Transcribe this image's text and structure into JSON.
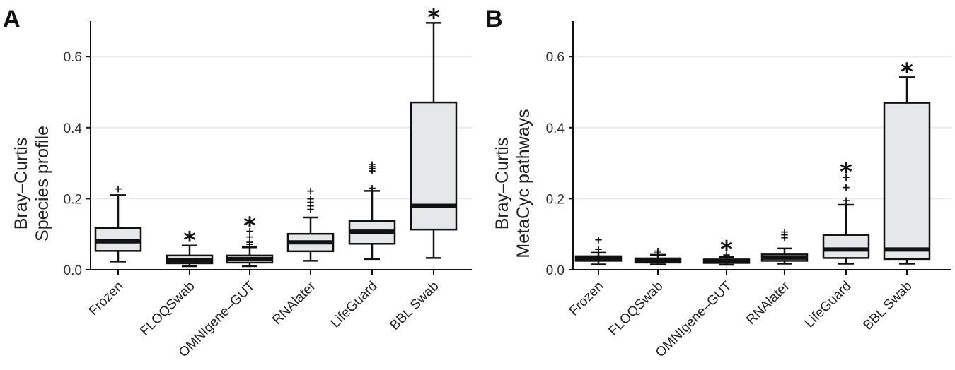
{
  "chart_data": [
    {
      "panel": "A",
      "type": "box",
      "ylabel_line1": "Bray–Curtis",
      "ylabel_line2": "Species profile",
      "ylim": [
        0,
        0.7
      ],
      "yticks": [
        0.0,
        0.2,
        0.4,
        0.6
      ],
      "ytick_labels": [
        "0.0",
        "0.2",
        "0.4",
        "0.6"
      ],
      "grid": true,
      "categories": [
        "Frozen",
        "FLOQSwab",
        "OMNIgene–GUT",
        "RNAlater",
        "LifeGuard",
        "BBL Swab"
      ],
      "boxes": [
        {
          "min": 0.023,
          "q1": 0.053,
          "median": 0.08,
          "q3": 0.117,
          "max": 0.21,
          "outliers": [
            0.228
          ],
          "significant": false
        },
        {
          "min": 0.01,
          "q1": 0.018,
          "median": 0.026,
          "q3": 0.04,
          "max": 0.068,
          "outliers": [],
          "significant": true
        },
        {
          "min": 0.01,
          "q1": 0.02,
          "median": 0.03,
          "q3": 0.04,
          "max": 0.063,
          "outliers": [
            0.072,
            0.078,
            0.092,
            0.108
          ],
          "significant": true
        },
        {
          "min": 0.025,
          "q1": 0.052,
          "median": 0.077,
          "q3": 0.101,
          "max": 0.147,
          "outliers": [
            0.17,
            0.18,
            0.19,
            0.2,
            0.222
          ],
          "significant": false
        },
        {
          "min": 0.03,
          "q1": 0.073,
          "median": 0.107,
          "q3": 0.137,
          "max": 0.222,
          "outliers": [
            0.23,
            0.278,
            0.285,
            0.29,
            0.296
          ],
          "significant": false
        },
        {
          "min": 0.033,
          "q1": 0.113,
          "median": 0.18,
          "q3": 0.471,
          "max": 0.695,
          "outliers": [],
          "significant": true
        }
      ]
    },
    {
      "panel": "B",
      "type": "box",
      "ylabel_line1": "Bray–Curtis",
      "ylabel_line2": "MetaCyc pathways",
      "ylim": [
        0,
        0.7
      ],
      "yticks": [
        0.0,
        0.2,
        0.4,
        0.6
      ],
      "ytick_labels": [
        "0.0",
        "0.2",
        "0.4",
        "0.6"
      ],
      "grid": true,
      "categories": [
        "Frozen",
        "FLOQSwab",
        "OMNIgene–GUT",
        "RNAlater",
        "LifeGuard",
        "BBL Swab"
      ],
      "boxes": [
        {
          "min": 0.015,
          "q1": 0.025,
          "median": 0.031,
          "q3": 0.038,
          "max": 0.048,
          "outliers": [
            0.058,
            0.084
          ],
          "significant": false
        },
        {
          "min": 0.015,
          "q1": 0.02,
          "median": 0.026,
          "q3": 0.032,
          "max": 0.042,
          "outliers": [
            0.048,
            0.053
          ],
          "significant": false
        },
        {
          "min": 0.014,
          "q1": 0.019,
          "median": 0.024,
          "q3": 0.029,
          "max": 0.036,
          "outliers": [
            0.042
          ],
          "significant": true
        },
        {
          "min": 0.017,
          "q1": 0.025,
          "median": 0.034,
          "q3": 0.043,
          "max": 0.06,
          "outliers": [
            0.09,
            0.098,
            0.106
          ],
          "significant": false
        },
        {
          "min": 0.017,
          "q1": 0.033,
          "median": 0.057,
          "q3": 0.098,
          "max": 0.183,
          "outliers": [
            0.195,
            0.232,
            0.26
          ],
          "significant": true
        },
        {
          "min": 0.017,
          "q1": 0.03,
          "median": 0.057,
          "q3": 0.47,
          "max": 0.542,
          "outliers": [],
          "significant": true
        }
      ]
    }
  ],
  "significance_symbol": "*",
  "outlier_symbol": "+",
  "colors": {
    "box_fill": "#e6e7e8",
    "stroke": "#111111",
    "grid": "#ebebeb"
  }
}
